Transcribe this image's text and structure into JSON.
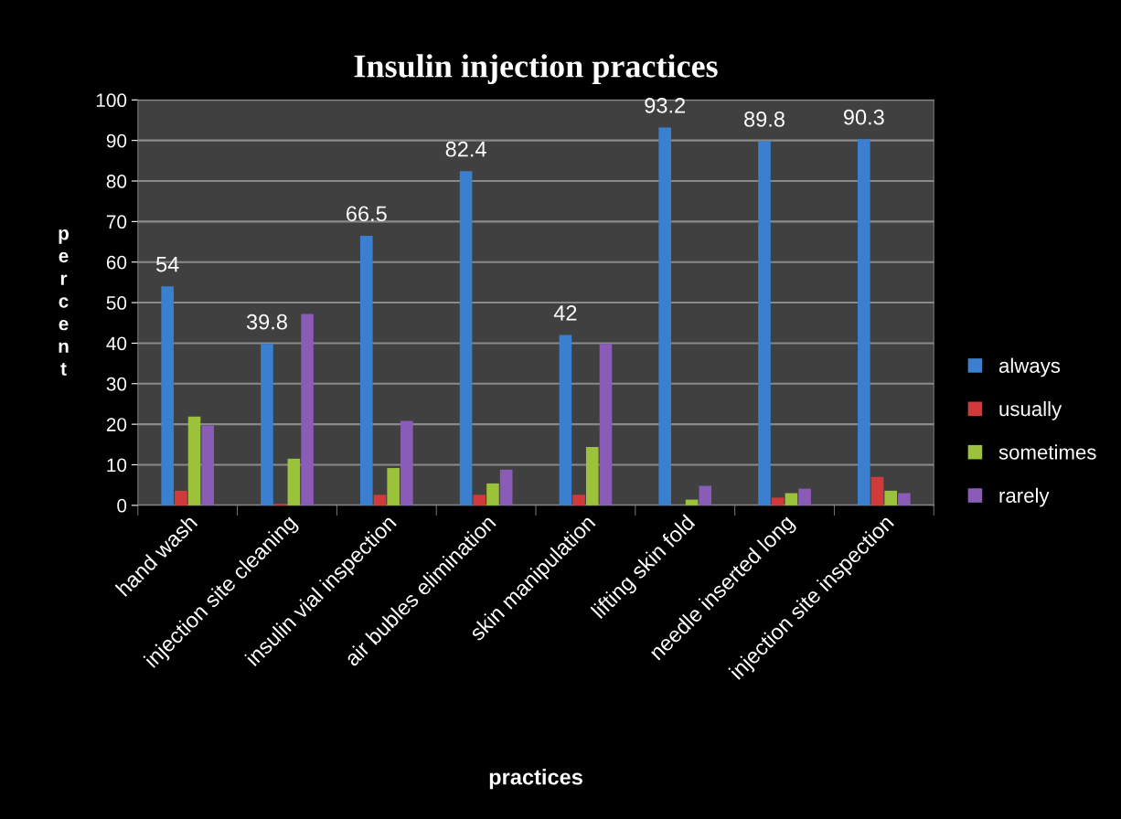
{
  "chart_data": {
    "type": "bar",
    "title": "Insulin injection practices",
    "xlabel": "practices",
    "ylabel": "percent",
    "categories": [
      "hand wash",
      "injection site cleaning",
      "insulin vial inspection",
      "air bubles elimination",
      "skin manipulation",
      "lifting skin fold",
      "needle inserted long",
      "injection site inspection"
    ],
    "series": [
      {
        "name": "always",
        "color": "#3a7fd0",
        "values": [
          54,
          39.8,
          66.5,
          82.4,
          42,
          93.2,
          89.8,
          90.3
        ],
        "value_labels": [
          "54",
          "39.8",
          "66.5",
          "82.4",
          "42",
          "93.2",
          "89.8",
          "90.3"
        ]
      },
      {
        "name": "usually",
        "color": "#d03a3a",
        "values": [
          3.6,
          0.3,
          2.6,
          2.6,
          2.6,
          null,
          1.9,
          7.0
        ]
      },
      {
        "name": "sometimes",
        "color": "#9bc23a",
        "values": [
          21.9,
          11.5,
          9.2,
          5.4,
          14.4,
          1.4,
          3.0,
          3.6
        ]
      },
      {
        "name": "rarely",
        "color": "#8a5cb8",
        "values": [
          19.7,
          47.2,
          20.8,
          8.8,
          39.8,
          4.8,
          4.1,
          3.0
        ]
      }
    ],
    "ylim": [
      0,
      100
    ],
    "yticks": [
      0,
      10,
      20,
      30,
      40,
      50,
      60,
      70,
      80,
      90,
      100
    ],
    "grid": "y",
    "legend": "right"
  }
}
